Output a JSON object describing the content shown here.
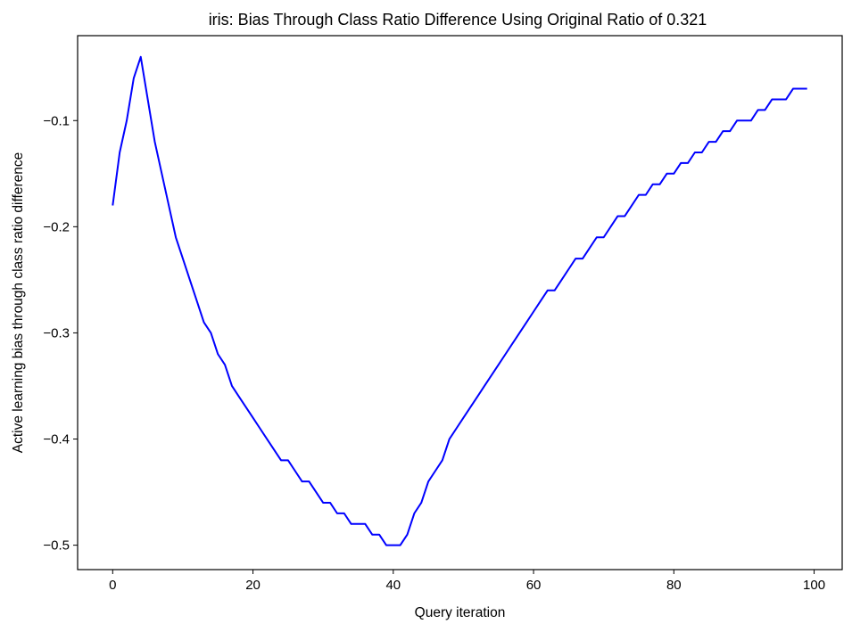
{
  "chart_data": {
    "type": "line",
    "title": "iris: Bias Through Class Ratio Difference Using Original Ratio of 0.321",
    "xlabel": "Query iteration",
    "ylabel": "Active learning bias through class ratio difference",
    "xlim": [
      -5,
      104
    ],
    "ylim": [
      -0.523,
      -0.02
    ],
    "xticks": [
      0,
      20,
      40,
      60,
      80,
      100
    ],
    "xtick_labels": [
      "0",
      "20",
      "40",
      "60",
      "80",
      "100"
    ],
    "yticks": [
      -0.1,
      -0.2,
      -0.3,
      -0.4,
      -0.5
    ],
    "ytick_labels": [
      "−0.1",
      "−0.2",
      "−0.3",
      "−0.4",
      "−0.5"
    ],
    "grid": false,
    "series": [
      {
        "color": "#0000ff",
        "x": [
          0,
          1,
          2,
          3,
          4,
          5,
          6,
          7,
          8,
          9,
          10,
          11,
          12,
          13,
          14,
          15,
          16,
          17,
          18,
          19,
          20,
          21,
          22,
          23,
          24,
          25,
          26,
          27,
          28,
          29,
          30,
          31,
          32,
          33,
          34,
          35,
          36,
          37,
          38,
          39,
          40,
          41,
          42,
          43,
          44,
          45,
          46,
          47,
          48,
          49,
          50,
          51,
          52,
          53,
          54,
          55,
          56,
          57,
          58,
          59,
          60,
          61,
          62,
          63,
          64,
          65,
          66,
          67,
          68,
          69,
          70,
          71,
          72,
          73,
          74,
          75,
          76,
          77,
          78,
          79,
          80,
          81,
          82,
          83,
          84,
          85,
          86,
          87,
          88,
          89,
          90,
          91,
          92,
          93,
          94,
          95,
          96,
          97,
          98,
          99
        ],
        "y": [
          -0.18,
          -0.13,
          -0.1,
          -0.06,
          -0.04,
          -0.08,
          -0.12,
          -0.15,
          -0.18,
          -0.21,
          -0.23,
          -0.25,
          -0.27,
          -0.29,
          -0.3,
          -0.32,
          -0.33,
          -0.35,
          -0.36,
          -0.37,
          -0.38,
          -0.39,
          -0.4,
          -0.41,
          -0.42,
          -0.42,
          -0.43,
          -0.44,
          -0.44,
          -0.45,
          -0.46,
          -0.46,
          -0.47,
          -0.47,
          -0.48,
          -0.48,
          -0.48,
          -0.49,
          -0.49,
          -0.5,
          -0.5,
          -0.5,
          -0.49,
          -0.47,
          -0.46,
          -0.44,
          -0.43,
          -0.42,
          -0.4,
          -0.39,
          -0.38,
          -0.37,
          -0.36,
          -0.35,
          -0.34,
          -0.33,
          -0.32,
          -0.31,
          -0.3,
          -0.29,
          -0.28,
          -0.27,
          -0.26,
          -0.26,
          -0.25,
          -0.24,
          -0.23,
          -0.23,
          -0.22,
          -0.21,
          -0.21,
          -0.2,
          -0.19,
          -0.19,
          -0.18,
          -0.17,
          -0.17,
          -0.16,
          -0.16,
          -0.15,
          -0.15,
          -0.14,
          -0.14,
          -0.13,
          -0.13,
          -0.12,
          -0.12,
          -0.11,
          -0.11,
          -0.1,
          -0.1,
          -0.1,
          -0.09,
          -0.09,
          -0.08,
          -0.08,
          -0.08,
          -0.07,
          -0.07,
          -0.07
        ]
      }
    ]
  }
}
